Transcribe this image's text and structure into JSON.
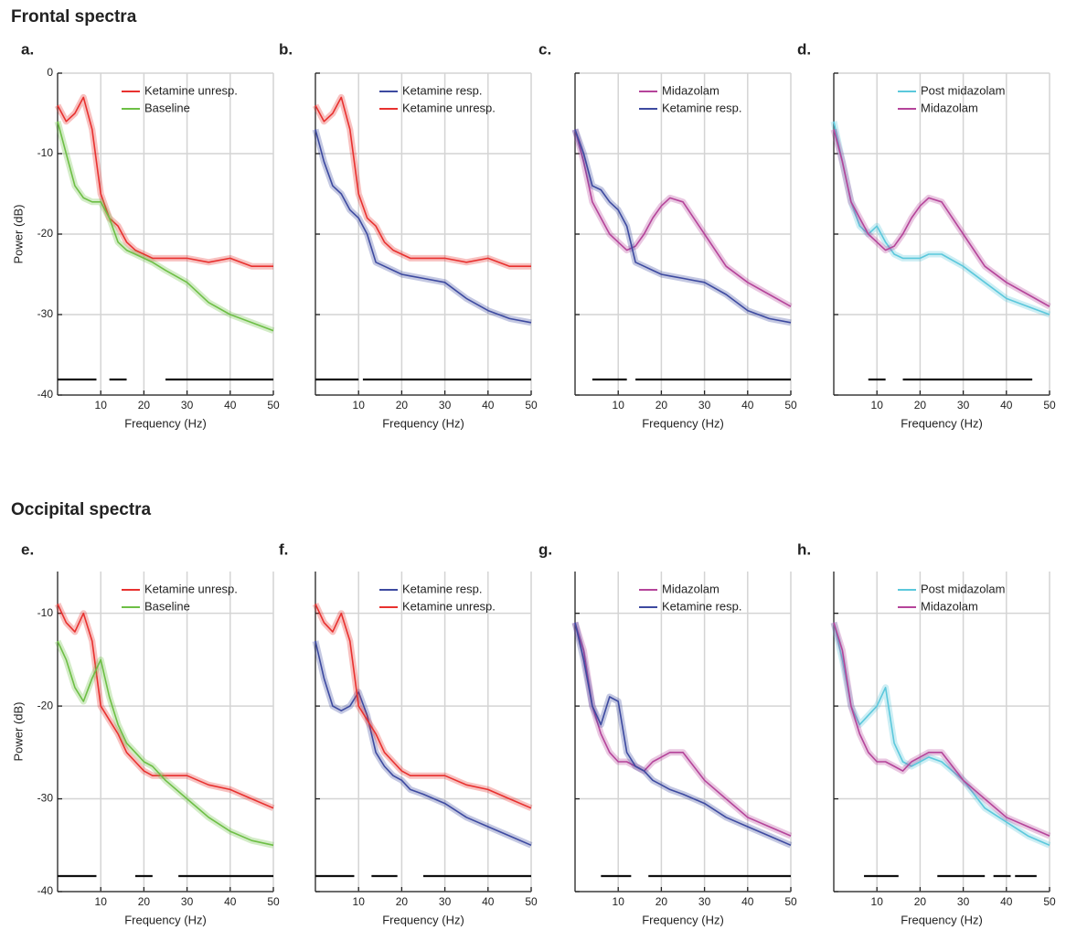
{
  "sections": [
    "Frontal spectra",
    "Occipital spectra"
  ],
  "chart_data": [
    {
      "type": "line",
      "label": "a.",
      "xlabel": "Frequency (Hz)",
      "ylabel": "Power (dB)",
      "x": [
        0,
        2,
        4,
        6,
        8,
        10,
        12,
        14,
        16,
        18,
        20,
        22,
        25,
        30,
        35,
        40,
        45,
        50
      ],
      "xlim": [
        0,
        50
      ],
      "xticks": [
        10,
        20,
        30,
        40,
        50
      ],
      "ylim": [
        -40,
        0
      ],
      "yticks": [
        0,
        -10,
        -20,
        -30,
        -40
      ],
      "grid": true,
      "series": [
        {
          "name": "Ketamine unresp.",
          "color": "#e8312f",
          "values": [
            -4,
            -6,
            -5,
            -3,
            -7,
            -15,
            -18,
            -19,
            -21,
            -22,
            -22.5,
            -23,
            -23,
            -23,
            -23.5,
            -23,
            -24,
            -24
          ]
        },
        {
          "name": "Baseline",
          "color": "#6dbf45",
          "values": [
            -6,
            -10,
            -14,
            -15.5,
            -16,
            -16,
            -18,
            -21,
            -22,
            -22.5,
            -23,
            -23.5,
            -24.5,
            -26,
            -28.5,
            -30,
            -31,
            -32
          ]
        }
      ],
      "sig_bars": [
        [
          0,
          9
        ],
        [
          12,
          16
        ],
        [
          25,
          50
        ]
      ]
    },
    {
      "type": "line",
      "label": "b.",
      "xlabel": "Frequency (Hz)",
      "x": [
        0,
        2,
        4,
        6,
        8,
        10,
        12,
        14,
        16,
        18,
        20,
        22,
        25,
        30,
        35,
        40,
        45,
        50
      ],
      "xlim": [
        0,
        50
      ],
      "xticks": [
        10,
        20,
        30,
        40,
        50
      ],
      "ylim": [
        -40,
        0
      ],
      "yticks": [
        0,
        -10,
        -20,
        -30,
        -40
      ],
      "grid": true,
      "series": [
        {
          "name": "Ketamine resp.",
          "color": "#3d4aa0",
          "values": [
            -7,
            -11,
            -14,
            -15,
            -17,
            -18,
            -20,
            -23.5,
            -24,
            -24.5,
            -25,
            -25.2,
            -25.5,
            -26,
            -28,
            -29.5,
            -30.5,
            -31
          ]
        },
        {
          "name": "Ketamine unresp.",
          "color": "#e8312f",
          "values": [
            -4,
            -6,
            -5,
            -3,
            -7,
            -15,
            -18,
            -19,
            -21,
            -22,
            -22.5,
            -23,
            -23,
            -23,
            -23.5,
            -23,
            -24,
            -24
          ]
        }
      ],
      "sig_bars": [
        [
          0,
          10
        ],
        [
          11,
          50
        ]
      ]
    },
    {
      "type": "line",
      "label": "c.",
      "xlabel": "Frequency (Hz)",
      "x": [
        0,
        2,
        4,
        6,
        8,
        10,
        12,
        14,
        16,
        18,
        20,
        22,
        25,
        30,
        35,
        40,
        45,
        50
      ],
      "xlim": [
        0,
        50
      ],
      "xticks": [
        10,
        20,
        30,
        40,
        50
      ],
      "ylim": [
        -40,
        0
      ],
      "yticks": [
        0,
        -10,
        -20,
        -30,
        -40
      ],
      "grid": true,
      "series": [
        {
          "name": "Midazolam",
          "color": "#b5449a",
          "values": [
            -7,
            -11,
            -16,
            -18,
            -20,
            -21,
            -22,
            -21.5,
            -20,
            -18,
            -16.5,
            -15.5,
            -16,
            -20,
            -24,
            -26,
            -27.5,
            -29
          ]
        },
        {
          "name": "Ketamine resp.",
          "color": "#3d4aa0",
          "values": [
            -7,
            -10,
            -14,
            -14.5,
            -16,
            -17,
            -19,
            -23.5,
            -24,
            -24.5,
            -25,
            -25.2,
            -25.5,
            -26,
            -27.5,
            -29.5,
            -30.5,
            -31
          ]
        }
      ],
      "sig_bars": [
        [
          4,
          12
        ],
        [
          14,
          50
        ]
      ]
    },
    {
      "type": "line",
      "label": "d.",
      "xlabel": "Frequency (Hz)",
      "x": [
        0,
        2,
        4,
        6,
        8,
        10,
        12,
        14,
        16,
        18,
        20,
        22,
        25,
        30,
        35,
        40,
        45,
        50
      ],
      "xlim": [
        0,
        50
      ],
      "xticks": [
        10,
        20,
        30,
        40,
        50
      ],
      "ylim": [
        -40,
        0
      ],
      "yticks": [
        0,
        -10,
        -20,
        -30,
        -40
      ],
      "grid": true,
      "series": [
        {
          "name": "Post midazolam",
          "color": "#5bc8dc",
          "values": [
            -6,
            -11,
            -16,
            -19,
            -20,
            -19,
            -21,
            -22.5,
            -23,
            -23,
            -23,
            -22.5,
            -22.5,
            -24,
            -26,
            -28,
            -29,
            -30
          ]
        },
        {
          "name": "Midazolam",
          "color": "#b5449a",
          "values": [
            -7,
            -11,
            -16,
            -18,
            -20,
            -21,
            -22,
            -21.5,
            -20,
            -18,
            -16.5,
            -15.5,
            -16,
            -20,
            -24,
            -26,
            -27.5,
            -29
          ]
        }
      ],
      "sig_bars": [
        [
          8,
          12
        ],
        [
          16,
          46
        ]
      ]
    },
    {
      "type": "line",
      "label": "e.",
      "xlabel": "Frequency (Hz)",
      "ylabel": "Power (dB)",
      "x": [
        0,
        2,
        4,
        6,
        8,
        10,
        12,
        14,
        16,
        18,
        20,
        22,
        25,
        30,
        35,
        40,
        45,
        50
      ],
      "xlim": [
        0,
        50
      ],
      "xticks": [
        10,
        20,
        30,
        40,
        50
      ],
      "ylim": [
        -40,
        -5.5
      ],
      "yticks": [
        -10,
        -20,
        -30,
        -40
      ],
      "grid": true,
      "series": [
        {
          "name": "Ketamine unresp.",
          "color": "#e8312f",
          "values": [
            -9,
            -11,
            -12,
            -10,
            -13,
            -20,
            -21.5,
            -23,
            -25,
            -26,
            -27,
            -27.5,
            -27.5,
            -27.5,
            -28.5,
            -29,
            -30,
            -31
          ]
        },
        {
          "name": "Baseline",
          "color": "#6dbf45",
          "values": [
            -13,
            -15,
            -18,
            -19.5,
            -17,
            -15,
            -19,
            -22,
            -24,
            -25,
            -26,
            -26.5,
            -28,
            -30,
            -32,
            -33.5,
            -34.5,
            -35
          ]
        }
      ],
      "sig_bars": [
        [
          0,
          9
        ],
        [
          18,
          22
        ],
        [
          28,
          50
        ]
      ]
    },
    {
      "type": "line",
      "label": "f.",
      "xlabel": "Frequency (Hz)",
      "x": [
        0,
        2,
        4,
        6,
        8,
        10,
        12,
        14,
        16,
        18,
        20,
        22,
        25,
        30,
        35,
        40,
        45,
        50
      ],
      "xlim": [
        0,
        50
      ],
      "xticks": [
        10,
        20,
        30,
        40,
        50
      ],
      "ylim": [
        -40,
        -5.5
      ],
      "yticks": [
        -10,
        -20,
        -30,
        -40
      ],
      "grid": true,
      "series": [
        {
          "name": "Ketamine resp.",
          "color": "#3d4aa0",
          "values": [
            -13,
            -17,
            -20,
            -20.5,
            -20,
            -18.5,
            -21,
            -25,
            -26.5,
            -27.5,
            -28,
            -29,
            -29.5,
            -30.5,
            -32,
            -33,
            -34,
            -35
          ]
        },
        {
          "name": "Ketamine unresp.",
          "color": "#e8312f",
          "values": [
            -9,
            -11,
            -12,
            -10,
            -13,
            -20,
            -21.5,
            -23,
            -25,
            -26,
            -27,
            -27.5,
            -27.5,
            -27.5,
            -28.5,
            -29,
            -30,
            -31
          ]
        }
      ],
      "sig_bars": [
        [
          0,
          9
        ],
        [
          13,
          19
        ],
        [
          25,
          50
        ]
      ]
    },
    {
      "type": "line",
      "label": "g.",
      "xlabel": "Frequency (Hz)",
      "x": [
        0,
        2,
        4,
        6,
        8,
        10,
        12,
        14,
        16,
        18,
        20,
        22,
        25,
        30,
        35,
        40,
        45,
        50
      ],
      "xlim": [
        0,
        50
      ],
      "xticks": [
        10,
        20,
        30,
        40,
        50
      ],
      "ylim": [
        -40,
        -5.5
      ],
      "yticks": [
        -10,
        -20,
        -30,
        -40
      ],
      "grid": true,
      "series": [
        {
          "name": "Midazolam",
          "color": "#b5449a",
          "values": [
            -11,
            -14,
            -20,
            -23,
            -25,
            -26,
            -26,
            -26.5,
            -27,
            -26,
            -25.5,
            -25,
            -25,
            -28,
            -30,
            -32,
            -33,
            -34
          ]
        },
        {
          "name": "Ketamine resp.",
          "color": "#3d4aa0",
          "values": [
            -11,
            -15,
            -20,
            -22,
            -19,
            -19.5,
            -25,
            -26.5,
            -27,
            -28,
            -28.5,
            -29,
            -29.5,
            -30.5,
            -32,
            -33,
            -34,
            -35
          ]
        }
      ],
      "sig_bars": [
        [
          6,
          13
        ],
        [
          17,
          50
        ]
      ]
    },
    {
      "type": "line",
      "label": "h.",
      "xlabel": "Frequency (Hz)",
      "x": [
        0,
        2,
        4,
        6,
        8,
        10,
        12,
        14,
        16,
        18,
        20,
        22,
        25,
        30,
        35,
        40,
        45,
        50
      ],
      "xlim": [
        0,
        50
      ],
      "xticks": [
        10,
        20,
        30,
        40,
        50
      ],
      "ylim": [
        -40,
        -5.5
      ],
      "yticks": [
        -10,
        -20,
        -30,
        -40
      ],
      "grid": true,
      "series": [
        {
          "name": "Post midazolam",
          "color": "#5bc8dc",
          "values": [
            -11,
            -15,
            -20,
            -22,
            -21,
            -20,
            -18,
            -24,
            -26,
            -26.5,
            -26,
            -25.5,
            -26,
            -28,
            -31,
            -32.5,
            -34,
            -35
          ]
        },
        {
          "name": "Midazolam",
          "color": "#b5449a",
          "values": [
            -11,
            -14,
            -20,
            -23,
            -25,
            -26,
            -26,
            -26.5,
            -27,
            -26,
            -25.5,
            -25,
            -25,
            -28,
            -30,
            -32,
            -33,
            -34
          ]
        }
      ],
      "sig_bars": [
        [
          7,
          15
        ],
        [
          24,
          35
        ],
        [
          37,
          41
        ],
        [
          42,
          47
        ]
      ]
    }
  ]
}
